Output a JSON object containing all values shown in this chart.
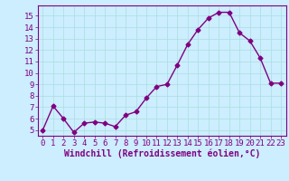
{
  "x": [
    0,
    1,
    2,
    3,
    4,
    5,
    6,
    7,
    8,
    9,
    10,
    11,
    12,
    13,
    14,
    15,
    16,
    17,
    18,
    19,
    20,
    21,
    22,
    23
  ],
  "y": [
    5.0,
    7.1,
    6.0,
    4.8,
    5.6,
    5.7,
    5.6,
    5.3,
    6.3,
    6.6,
    7.8,
    8.8,
    9.0,
    10.7,
    12.5,
    13.8,
    14.8,
    15.3,
    15.3,
    13.5,
    12.8,
    11.3,
    9.1,
    9.1
  ],
  "line_color": "#800080",
  "marker": "D",
  "marker_size": 2.5,
  "linewidth": 1.0,
  "bg_color": "#cceeff",
  "grid_color": "#aadddd",
  "xlabel": "Windchill (Refroidissement éolien,°C)",
  "ylabel_ticks": [
    5,
    6,
    7,
    8,
    9,
    10,
    11,
    12,
    13,
    14,
    15
  ],
  "xlim": [
    -0.5,
    23.5
  ],
  "ylim": [
    4.5,
    15.9
  ],
  "xtick_labels": [
    "0",
    "1",
    "2",
    "3",
    "4",
    "5",
    "6",
    "7",
    "8",
    "9",
    "10",
    "11",
    "12",
    "13",
    "14",
    "15",
    "16",
    "17",
    "18",
    "19",
    "20",
    "21",
    "22",
    "23"
  ],
  "xlabel_fontsize": 7,
  "tick_fontsize": 6.5
}
